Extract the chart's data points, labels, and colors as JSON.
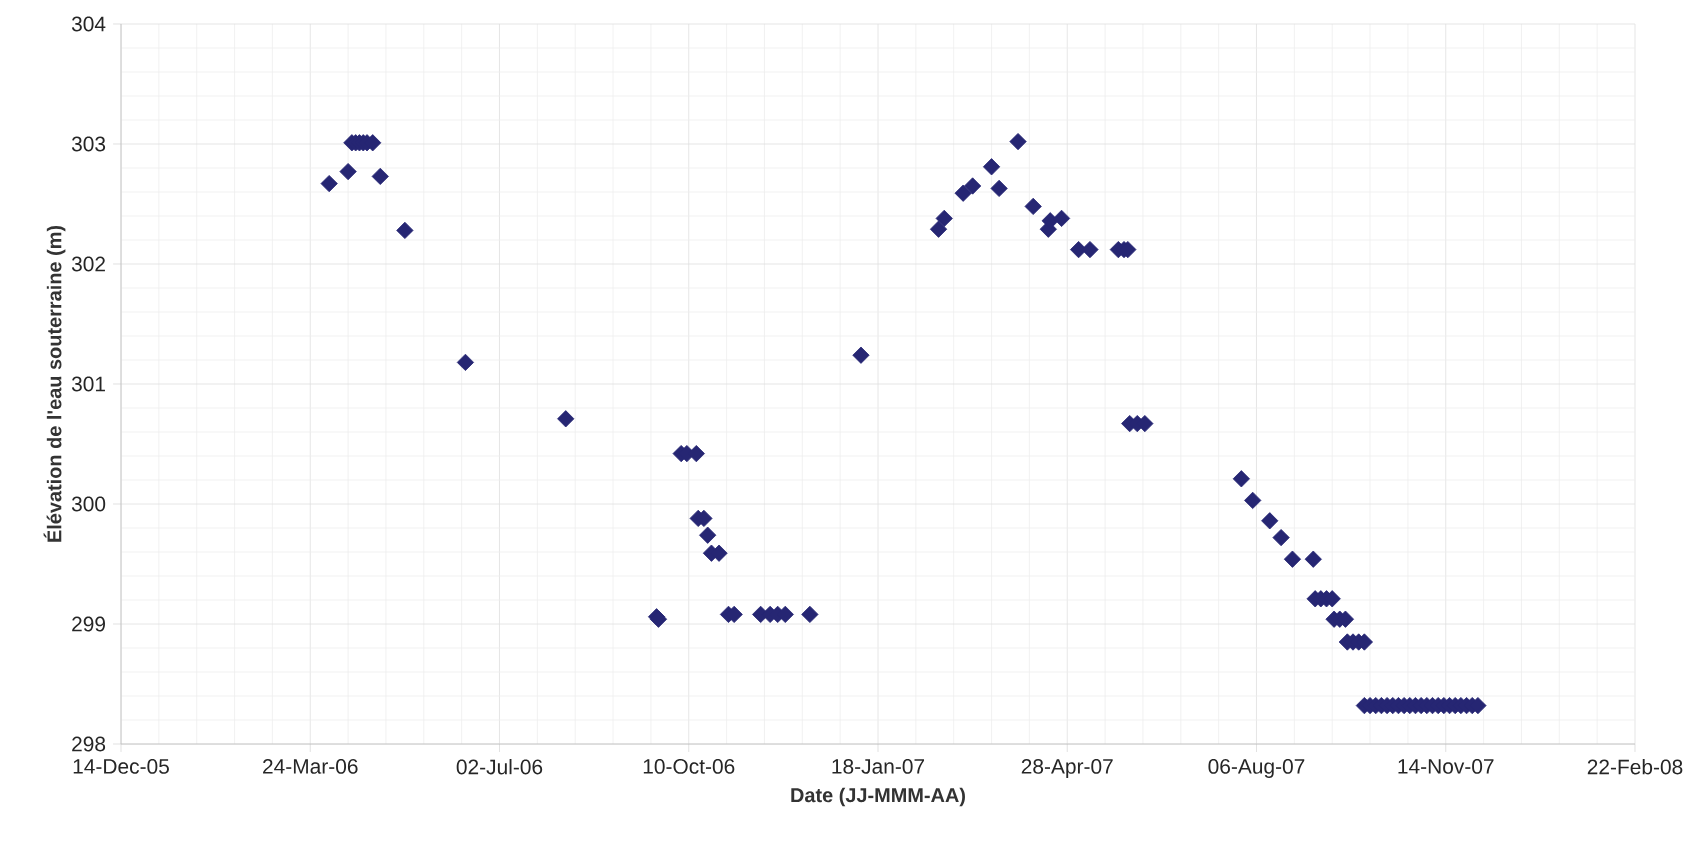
{
  "chart_data": {
    "type": "scatter",
    "xlabel": "Date (JJ-MMM-AA)",
    "ylabel": "Élévation de l'eau souterraine (m)",
    "xlim": [
      "2005-12-14",
      "2008-02-22"
    ],
    "xticks": [
      {
        "value": "2005-12-14",
        "label": "14-Dec-05"
      },
      {
        "value": "2006-03-24",
        "label": "24-Mar-06"
      },
      {
        "value": "2006-07-02",
        "label": "02-Jul-06"
      },
      {
        "value": "2006-10-10",
        "label": "10-Oct-06"
      },
      {
        "value": "2007-01-18",
        "label": "18-Jan-07"
      },
      {
        "value": "2007-04-28",
        "label": "28-Apr-07"
      },
      {
        "value": "2007-08-06",
        "label": "06-Aug-07"
      },
      {
        "value": "2007-11-14",
        "label": "14-Nov-07"
      },
      {
        "value": "2008-02-22",
        "label": "22-Feb-08"
      }
    ],
    "ylim": [
      298,
      304
    ],
    "yticks": [
      298,
      299,
      300,
      301,
      302,
      303,
      304
    ],
    "grid": true,
    "marker": "diamond",
    "color": "#262673",
    "x": [
      "2006-04-03",
      "2006-04-13",
      "2006-04-15",
      "2006-04-17",
      "2006-04-19",
      "2006-04-21",
      "2006-04-23",
      "2006-04-26",
      "2006-04-30",
      "2006-05-13",
      "2006-06-14",
      "2006-08-06",
      "2006-09-23",
      "2006-09-24",
      "2006-10-06",
      "2006-10-09",
      "2006-10-14",
      "2006-10-15",
      "2006-10-18",
      "2006-10-20",
      "2006-10-22",
      "2006-10-26",
      "2006-10-31",
      "2006-11-03",
      "2006-11-17",
      "2006-11-22",
      "2006-11-26",
      "2006-11-30",
      "2006-12-13",
      "2007-01-09",
      "2007-02-19",
      "2007-02-22",
      "2007-03-04",
      "2007-03-09",
      "2007-03-19",
      "2007-03-23",
      "2007-04-02",
      "2007-04-10",
      "2007-04-18",
      "2007-04-19",
      "2007-04-25",
      "2007-05-04",
      "2007-05-10",
      "2007-05-25",
      "2007-05-28",
      "2007-05-30",
      "2007-05-31",
      "2007-06-04",
      "2007-06-08",
      "2007-07-29",
      "2007-08-04",
      "2007-08-13",
      "2007-08-19",
      "2007-08-25",
      "2007-09-05",
      "2007-09-06",
      "2007-09-09",
      "2007-09-12",
      "2007-09-15",
      "2007-09-16",
      "2007-09-19",
      "2007-09-22",
      "2007-09-23",
      "2007-09-26",
      "2007-09-29",
      "2007-10-02",
      "2007-10-02",
      "2007-10-05",
      "2007-10-08",
      "2007-10-11",
      "2007-10-14",
      "2007-10-17",
      "2007-10-20",
      "2007-10-23",
      "2007-10-26",
      "2007-10-29",
      "2007-11-01",
      "2007-11-04",
      "2007-11-07",
      "2007-11-10",
      "2007-11-13",
      "2007-11-16",
      "2007-11-19",
      "2007-11-22",
      "2007-11-25",
      "2007-11-28",
      "2007-12-01"
    ],
    "values": [
      302.67,
      302.77,
      303.01,
      303.01,
      303.01,
      303.01,
      303.01,
      303.01,
      302.73,
      302.28,
      301.18,
      300.71,
      299.06,
      299.04,
      300.42,
      300.42,
      300.42,
      299.88,
      299.88,
      299.74,
      299.59,
      299.59,
      299.08,
      299.08,
      299.08,
      299.08,
      299.08,
      299.08,
      299.08,
      301.24,
      302.29,
      302.38,
      302.59,
      302.65,
      302.81,
      302.63,
      303.02,
      302.48,
      302.29,
      302.36,
      302.38,
      302.12,
      302.12,
      302.12,
      302.12,
      302.12,
      300.67,
      300.67,
      300.67,
      300.21,
      300.03,
      299.86,
      299.72,
      299.54,
      299.54,
      299.21,
      299.21,
      299.21,
      299.21,
      299.04,
      299.04,
      299.04,
      298.85,
      298.85,
      298.85,
      298.85,
      298.32,
      298.32,
      298.32,
      298.32,
      298.32,
      298.32,
      298.32,
      298.32,
      298.32,
      298.32,
      298.32,
      298.32,
      298.32,
      298.32,
      298.32,
      298.32,
      298.32,
      298.32,
      298.32,
      298.32,
      298.32
    ]
  }
}
